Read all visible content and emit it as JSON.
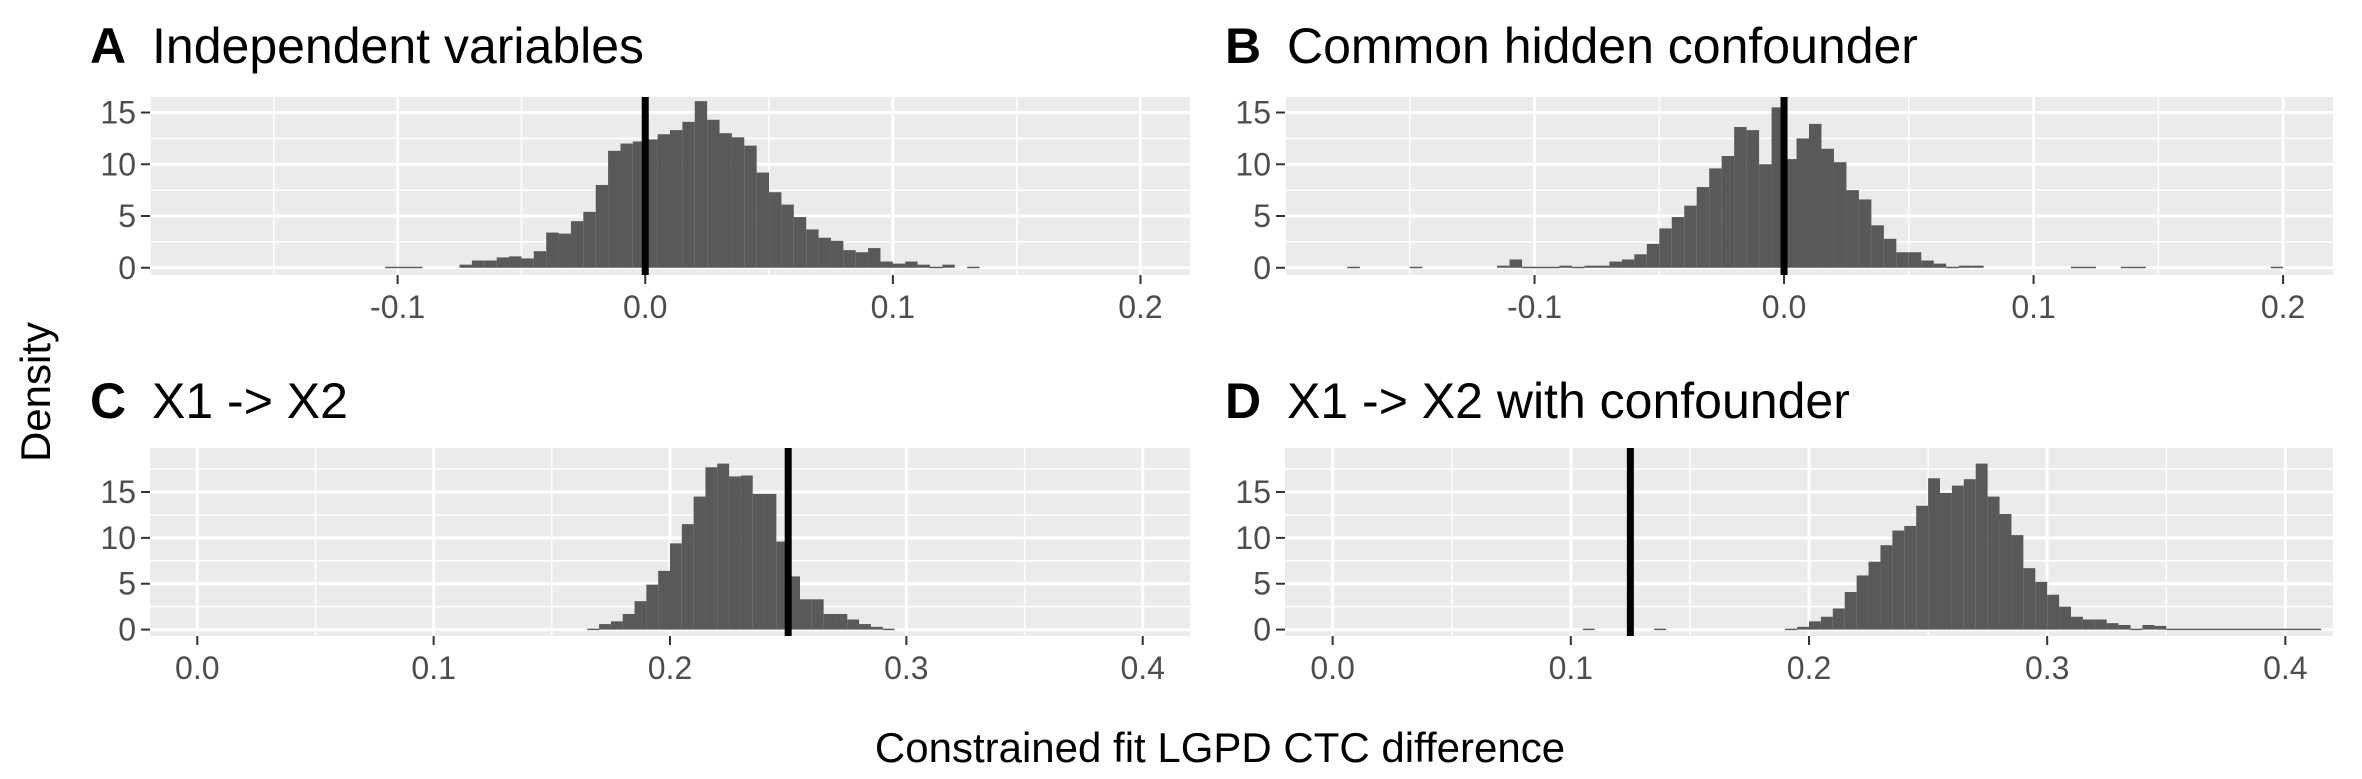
{
  "ylabel": "Density",
  "xlabel": "Constrained fit LGPD CTC difference",
  "chart_data": [
    {
      "type": "histogram",
      "panel": "A",
      "title": "Independent variables",
      "xlim": [
        -0.2,
        0.22
      ],
      "ylim": [
        -0.7,
        16.5
      ],
      "xticks": [
        -0.1,
        0.0,
        0.1,
        0.2
      ],
      "xtick_labels": [
        "-0.1",
        "0.0",
        "0.1",
        "0.2"
      ],
      "yticks": [
        0,
        5,
        10,
        15
      ],
      "ytick_labels": [
        "0",
        "5",
        "10",
        "15"
      ],
      "bin_start": -0.105,
      "bin_width": 0.005,
      "counts": [
        0.1,
        0.1,
        0.1,
        0,
        0,
        0,
        0.3,
        0.7,
        0.7,
        1,
        1.1,
        0.9,
        1.6,
        3.4,
        3.3,
        4.5,
        5.4,
        8,
        11.3,
        12,
        12.2,
        12.4,
        12.9,
        13.3,
        14.1,
        16.1,
        14.3,
        13,
        12.6,
        11.8,
        9.2,
        7.3,
        6.1,
        4.9,
        3.7,
        2.9,
        2.6,
        1.7,
        1.5,
        1.9,
        0.6,
        0.4,
        0.6,
        0.3,
        0.1,
        0.3,
        0,
        0.1
      ],
      "vline": 0.0,
      "grid": true
    },
    {
      "type": "histogram",
      "panel": "B",
      "title": "Common hidden confounder",
      "xlim": [
        -0.2,
        0.22
      ],
      "ylim": [
        -0.7,
        16.5
      ],
      "xticks": [
        -0.1,
        0.0,
        0.1,
        0.2
      ],
      "xtick_labels": [
        "-0.1",
        "0.0",
        "0.1",
        "0.2"
      ],
      "yticks": [
        0,
        5,
        10,
        15
      ],
      "ytick_labels": [
        "0",
        "5",
        "10",
        "15"
      ],
      "bin_start": -0.115,
      "bin_width": 0.005,
      "counts": [
        0.2,
        0.8,
        0.1,
        0.1,
        0.1,
        0.2,
        0.1,
        0.2,
        0.2,
        0.6,
        0.8,
        1.3,
        2.3,
        3.8,
        4.9,
        6,
        7.8,
        9.6,
        10.8,
        13.6,
        13.3,
        10,
        15.5,
        10.5,
        12.5,
        13.9,
        11.5,
        10.2,
        7.5,
        6.6,
        4.1,
        2.8,
        1.5,
        1.5,
        0.7,
        0.4,
        0.1,
        0.2,
        0.2
      ],
      "extra_bins": [
        {
          "x": -0.175,
          "value": 0.1
        },
        {
          "x": -0.15,
          "value": 0.1
        },
        {
          "x": 0.115,
          "value": 0.1
        },
        {
          "x": 0.12,
          "value": 0.1
        },
        {
          "x": 0.135,
          "value": 0.1
        },
        {
          "x": 0.14,
          "value": 0.1
        },
        {
          "x": 0.195,
          "value": 0.1
        }
      ],
      "vline": 0.0,
      "grid": true
    },
    {
      "type": "histogram",
      "panel": "C",
      "title": "X1 -> X2",
      "xlim": [
        -0.02,
        0.42
      ],
      "ylim": [
        -0.7,
        19.8
      ],
      "xticks": [
        0.0,
        0.1,
        0.2,
        0.3,
        0.4
      ],
      "xtick_labels": [
        "0.0",
        "0.1",
        "0.2",
        "0.3",
        "0.4"
      ],
      "yticks": [
        0,
        5,
        10,
        15
      ],
      "ytick_labels": [
        "0",
        "5",
        "10",
        "15"
      ],
      "bin_start": 0.165,
      "bin_width": 0.005,
      "counts": [
        0.1,
        0.6,
        0.9,
        1.7,
        3.1,
        4.9,
        6.4,
        9.4,
        11.5,
        14.5,
        17.7,
        18.1,
        16.7,
        16.8,
        14.8,
        14.8,
        9.6,
        5.8,
        3.3,
        3.3,
        1.7,
        1.7,
        1.1,
        0.6,
        0.3,
        0.1
      ],
      "vline": 0.25,
      "grid": true
    },
    {
      "type": "histogram",
      "panel": "D",
      "title": "X1 -> X2 with confounder",
      "xlim": [
        -0.02,
        0.42
      ],
      "ylim": [
        -0.7,
        19.8
      ],
      "xticks": [
        0.0,
        0.1,
        0.2,
        0.3,
        0.4
      ],
      "xtick_labels": [
        "0.0",
        "0.1",
        "0.2",
        "0.3",
        "0.4"
      ],
      "yticks": [
        0,
        5,
        10,
        15
      ],
      "ytick_labels": [
        "0",
        "5",
        "10",
        "15"
      ],
      "bin_start": 0.19,
      "bin_width": 0.005,
      "counts": [
        0.1,
        0.3,
        0.9,
        1.4,
        2.3,
        4.1,
        5.9,
        7.4,
        9.2,
        10.8,
        11.3,
        13.5,
        16.5,
        14.9,
        15.7,
        16.4,
        18.1,
        14.5,
        12.6,
        10.3,
        6.7,
        5.2,
        3.8,
        2.5,
        1.4,
        1.1,
        1.1,
        0.7,
        0.5,
        0.1,
        0.5,
        0.4,
        0.1,
        0.1,
        0.1,
        0.1,
        0.1,
        0.1,
        0.1,
        0.1,
        0.1,
        0.1,
        0.1,
        0.1,
        0.1
      ],
      "extra_bins": [
        {
          "x": 0.105,
          "value": 0.1
        },
        {
          "x": 0.135,
          "value": 0.1
        }
      ],
      "vline": 0.125,
      "grid": true
    }
  ]
}
